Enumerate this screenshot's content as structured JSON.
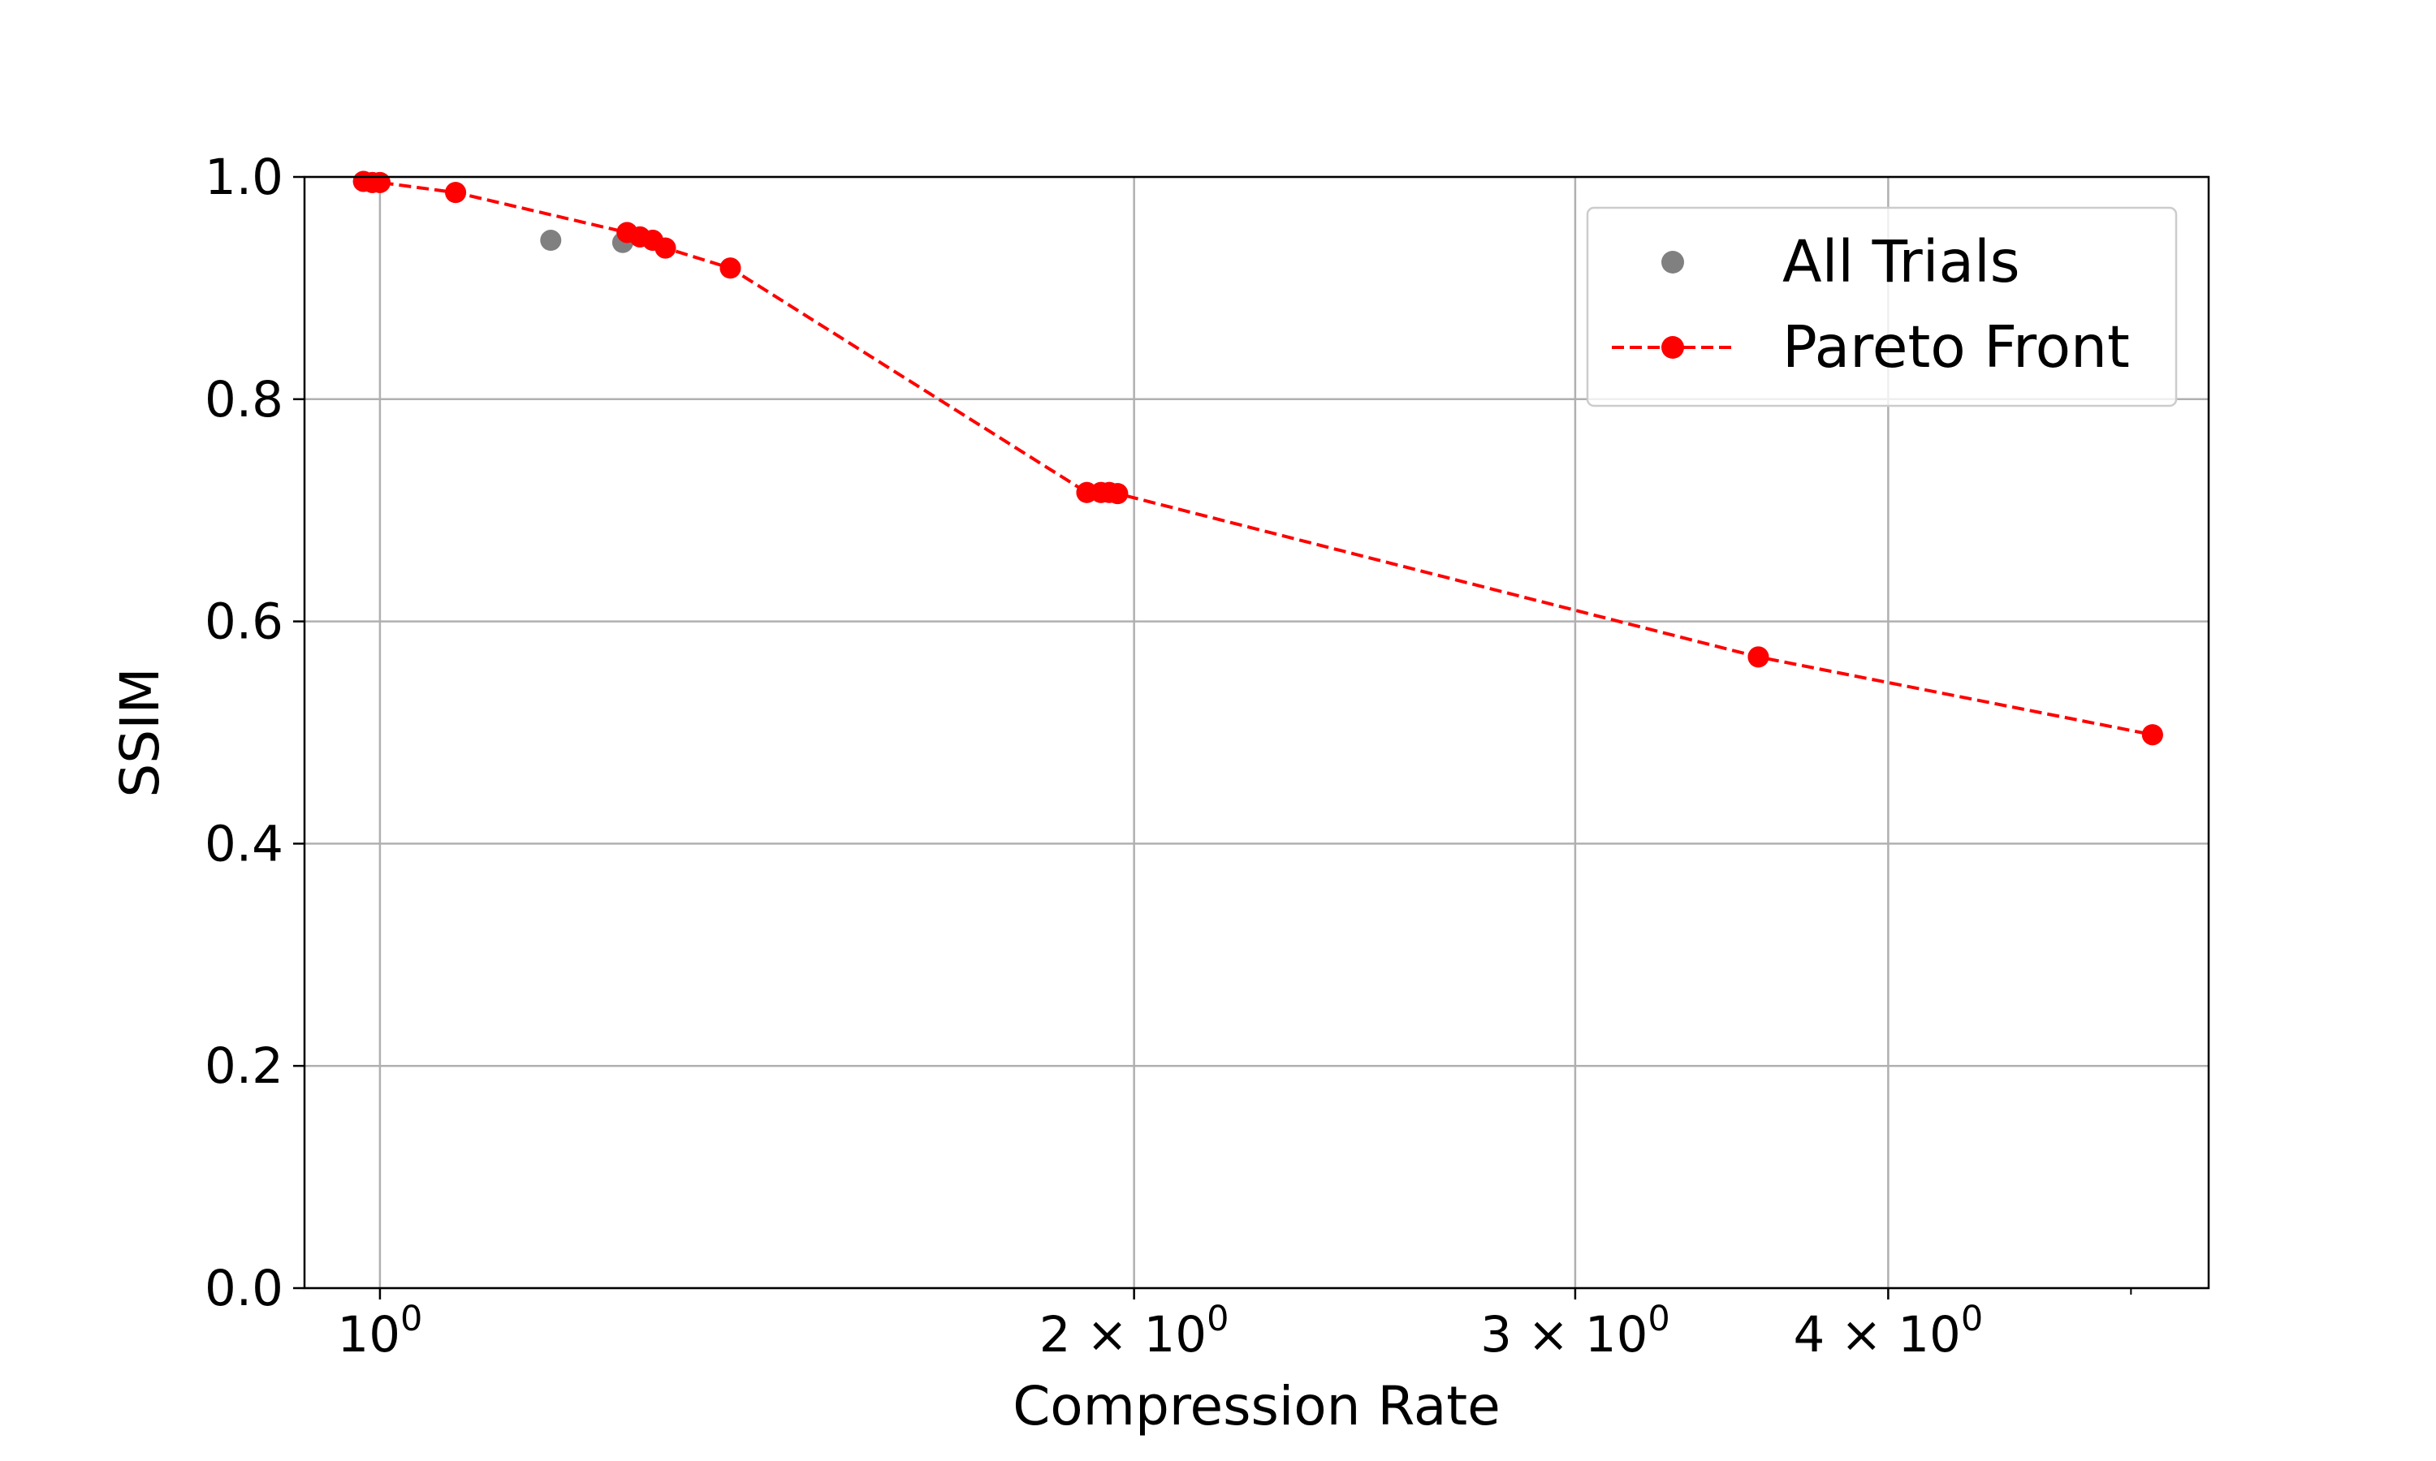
{
  "chart_data": {
    "type": "scatter",
    "xlabel": "Compression Rate",
    "ylabel": "SSIM",
    "xscale": "log",
    "xlim": [
      0.933,
      5.37
    ],
    "ylim": [
      0.0,
      1.0
    ],
    "x_ticks": [
      {
        "value": 1,
        "label": "10",
        "exp": "0"
      },
      {
        "value": 2,
        "label": "2 × 10",
        "exp": "0"
      },
      {
        "value": 3,
        "label": "3 × 10",
        "exp": "0"
      },
      {
        "value": 4,
        "label": "4 × 10",
        "exp": "0"
      }
    ],
    "x_minor_ticks": [
      5
    ],
    "y_ticks": [
      {
        "value": 0.0,
        "label": "0.0"
      },
      {
        "value": 0.2,
        "label": "0.2"
      },
      {
        "value": 0.4,
        "label": "0.4"
      },
      {
        "value": 0.6,
        "label": "0.6"
      },
      {
        "value": 0.8,
        "label": "0.8"
      },
      {
        "value": 1.0,
        "label": "1.0"
      }
    ],
    "grid": true,
    "legend_position": "top-right",
    "series": [
      {
        "name": "All Trials",
        "color": "#808080",
        "style": "markers",
        "points": [
          {
            "x": 0.985,
            "y": 0.996
          },
          {
            "x": 0.993,
            "y": 0.995
          },
          {
            "x": 1.0,
            "y": 0.995
          },
          {
            "x": 1.072,
            "y": 0.986
          },
          {
            "x": 1.17,
            "y": 0.943
          },
          {
            "x": 1.25,
            "y": 0.941
          },
          {
            "x": 1.255,
            "y": 0.95
          },
          {
            "x": 1.27,
            "y": 0.946
          },
          {
            "x": 1.285,
            "y": 0.943
          },
          {
            "x": 1.3,
            "y": 0.936
          },
          {
            "x": 1.38,
            "y": 0.918
          },
          {
            "x": 1.915,
            "y": 0.716
          },
          {
            "x": 1.94,
            "y": 0.716
          },
          {
            "x": 1.955,
            "y": 0.716
          },
          {
            "x": 1.97,
            "y": 0.715
          },
          {
            "x": 3.55,
            "y": 0.568
          },
          {
            "x": 5.1,
            "y": 0.498
          }
        ]
      },
      {
        "name": "Pareto Front",
        "color": "#ff0000",
        "style": "dashed-line-markers",
        "points": [
          {
            "x": 0.985,
            "y": 0.996
          },
          {
            "x": 0.993,
            "y": 0.995
          },
          {
            "x": 1.0,
            "y": 0.995
          },
          {
            "x": 1.072,
            "y": 0.986
          },
          {
            "x": 1.255,
            "y": 0.95
          },
          {
            "x": 1.27,
            "y": 0.946
          },
          {
            "x": 1.285,
            "y": 0.943
          },
          {
            "x": 1.3,
            "y": 0.936
          },
          {
            "x": 1.38,
            "y": 0.918
          },
          {
            "x": 1.915,
            "y": 0.716
          },
          {
            "x": 1.94,
            "y": 0.716
          },
          {
            "x": 1.955,
            "y": 0.716
          },
          {
            "x": 1.97,
            "y": 0.715
          },
          {
            "x": 3.55,
            "y": 0.568
          },
          {
            "x": 5.1,
            "y": 0.498
          }
        ]
      }
    ]
  }
}
